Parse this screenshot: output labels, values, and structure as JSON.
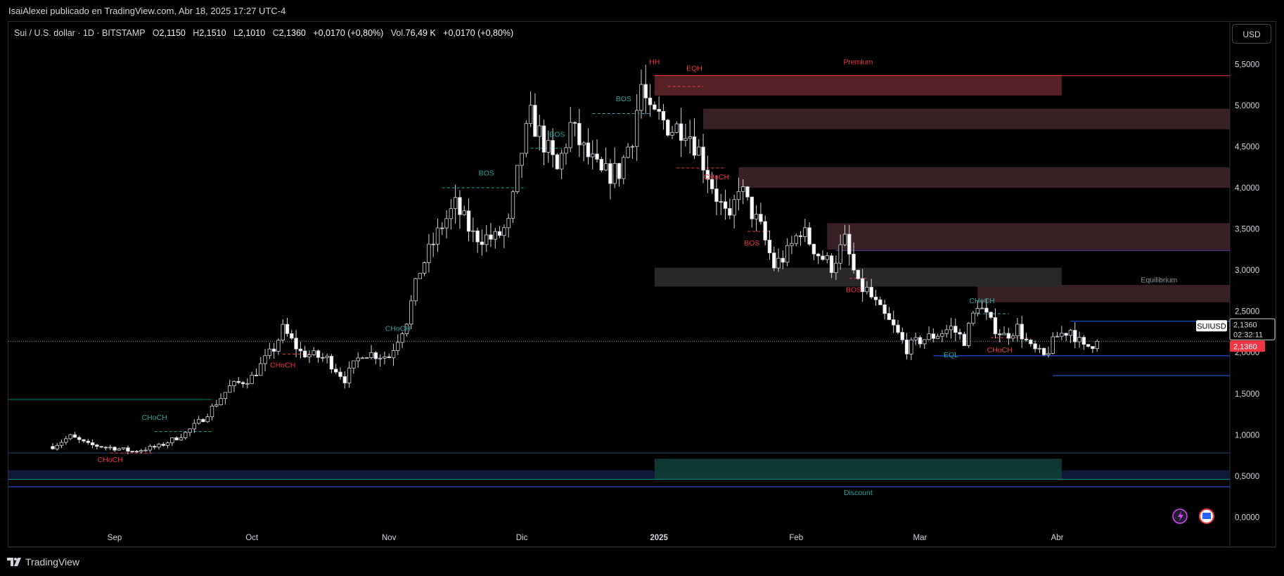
{
  "header": {
    "publish_line": "IsaiAlexei publicado en TradingView.com, Abr 18, 2025 17:27 UTC-4"
  },
  "legend": {
    "symbol": "Sui / U.S. dollar · 1D · BITSTAMP",
    "open_label": "O",
    "open": "2,1150",
    "high_label": "H",
    "high": "2,1510",
    "low_label": "L",
    "low": "2,1010",
    "close_label": "C",
    "close": "2,1360",
    "change": "+0,0170 (+0,80%)",
    "vol_label": "Vol.",
    "vol": "76,49 K",
    "vol_change": "+0,0170 (+0,80%)"
  },
  "currency_button": "USD",
  "footer": {
    "brand": "TradingView"
  },
  "chart_data": {
    "type": "candlestick",
    "x_ticks": [
      {
        "label": "Sep",
        "t": 14
      },
      {
        "label": "Oct",
        "t": 45
      },
      {
        "label": "Nov",
        "t": 76
      },
      {
        "label": "Dic",
        "t": 106
      },
      {
        "label": "2025",
        "t": 137
      },
      {
        "label": "Feb",
        "t": 168
      },
      {
        "label": "Mar",
        "t": 196
      },
      {
        "label": "Abr",
        "t": 227
      }
    ],
    "y_ticks": [
      "5,5000",
      "5,0000",
      "4,5000",
      "4,0000",
      "3,5000",
      "3,0000",
      "2,5000",
      "2,0000",
      "1,5000",
      "1,0000",
      "0,5000",
      "0,0000"
    ],
    "y_tick_values": [
      5.5,
      5.0,
      4.5,
      4.0,
      3.5,
      3.0,
      2.5,
      2.0,
      1.5,
      1.0,
      0.5,
      0.0
    ],
    "x_range": [
      -10,
      266
    ],
    "y_range": [
      -0.15,
      5.75
    ],
    "last_price": 2.136,
    "price_tag": {
      "symbol": "SUIUSD",
      "price": "2,1360",
      "countdown": "02:32:11",
      "price_box": "2,1360"
    },
    "anchors": [
      [
        0,
        0.86
      ],
      [
        4,
        0.98
      ],
      [
        8,
        0.88
      ],
      [
        14,
        0.84
      ],
      [
        18,
        0.8
      ],
      [
        24,
        0.86
      ],
      [
        30,
        1.02
      ],
      [
        34,
        1.2
      ],
      [
        40,
        1.58
      ],
      [
        45,
        1.7
      ],
      [
        50,
        2.05
      ],
      [
        52,
        2.28
      ],
      [
        56,
        2.0
      ],
      [
        62,
        1.92
      ],
      [
        66,
        1.68
      ],
      [
        70,
        2.0
      ],
      [
        76,
        1.95
      ],
      [
        80,
        2.4
      ],
      [
        83,
        3.0
      ],
      [
        88,
        3.55
      ],
      [
        91,
        3.78
      ],
      [
        95,
        3.42
      ],
      [
        100,
        3.38
      ],
      [
        103,
        3.55
      ],
      [
        106,
        4.45
      ],
      [
        108,
        4.85
      ],
      [
        111,
        4.55
      ],
      [
        114,
        4.2
      ],
      [
        117,
        4.75
      ],
      [
        120,
        4.45
      ],
      [
        124,
        4.15
      ],
      [
        128,
        4.2
      ],
      [
        131,
        4.65
      ],
      [
        133,
        5.25
      ],
      [
        135,
        4.85
      ],
      [
        137,
        4.85
      ],
      [
        140,
        4.72
      ],
      [
        143,
        4.75
      ],
      [
        146,
        4.45
      ],
      [
        150,
        3.9
      ],
      [
        153,
        3.55
      ],
      [
        155,
        4.05
      ],
      [
        157,
        3.8
      ],
      [
        160,
        3.5
      ],
      [
        163,
        3.05
      ],
      [
        166,
        3.2
      ],
      [
        169,
        3.5
      ],
      [
        173,
        3.2
      ],
      [
        176,
        3.05
      ],
      [
        179,
        3.35
      ],
      [
        182,
        2.8
      ],
      [
        184,
        2.75
      ],
      [
        187,
        2.5
      ],
      [
        190,
        2.3
      ],
      [
        193,
        2.05
      ],
      [
        196,
        2.15
      ],
      [
        199,
        2.2
      ],
      [
        203,
        2.3
      ],
      [
        206,
        2.15
      ],
      [
        209,
        2.6
      ],
      [
        212,
        2.35
      ],
      [
        215,
        2.2
      ],
      [
        218,
        2.3
      ],
      [
        221,
        2.05
      ],
      [
        224,
        1.95
      ],
      [
        227,
        2.2
      ],
      [
        230,
        2.28
      ],
      [
        233,
        2.05
      ],
      [
        236,
        2.136
      ]
    ],
    "drawings": {
      "premium_label": "Premium",
      "equilibrium_label": "Equilibrium",
      "discount_label": "Discount",
      "structure_labels": [
        {
          "text": "CHoCH",
          "t": 13,
          "p": 0.67,
          "color": "red"
        },
        {
          "text": "CHoCH",
          "t": 23,
          "p": 1.18,
          "color": "green"
        },
        {
          "text": "CHoCH",
          "t": 52,
          "p": 1.82,
          "color": "red"
        },
        {
          "text": "CHoCH",
          "t": 78,
          "p": 2.26,
          "color": "green"
        },
        {
          "text": "BOS",
          "t": 98,
          "p": 4.15,
          "color": "green"
        },
        {
          "text": "BOS",
          "t": 114,
          "p": 4.62,
          "color": "green"
        },
        {
          "text": "BOS",
          "t": 129,
          "p": 5.05,
          "color": "green"
        },
        {
          "text": "HH",
          "t": 136,
          "p": 5.5,
          "color": "red"
        },
        {
          "text": "EQH",
          "t": 145,
          "p": 5.42,
          "color": "red"
        },
        {
          "text": "CHoCH",
          "t": 150,
          "p": 4.1,
          "color": "red"
        },
        {
          "text": "BOS",
          "t": 158,
          "p": 3.3,
          "color": "red"
        },
        {
          "text": "BOS",
          "t": 181,
          "p": 2.73,
          "color": "red"
        },
        {
          "text": "CHoCH",
          "t": 210,
          "p": 2.6,
          "color": "green"
        },
        {
          "text": "EQL",
          "t": 203,
          "p": 1.94,
          "color": "green"
        },
        {
          "text": "CHoCH",
          "t": 214,
          "p": 2.0,
          "color": "red"
        }
      ]
    }
  }
}
